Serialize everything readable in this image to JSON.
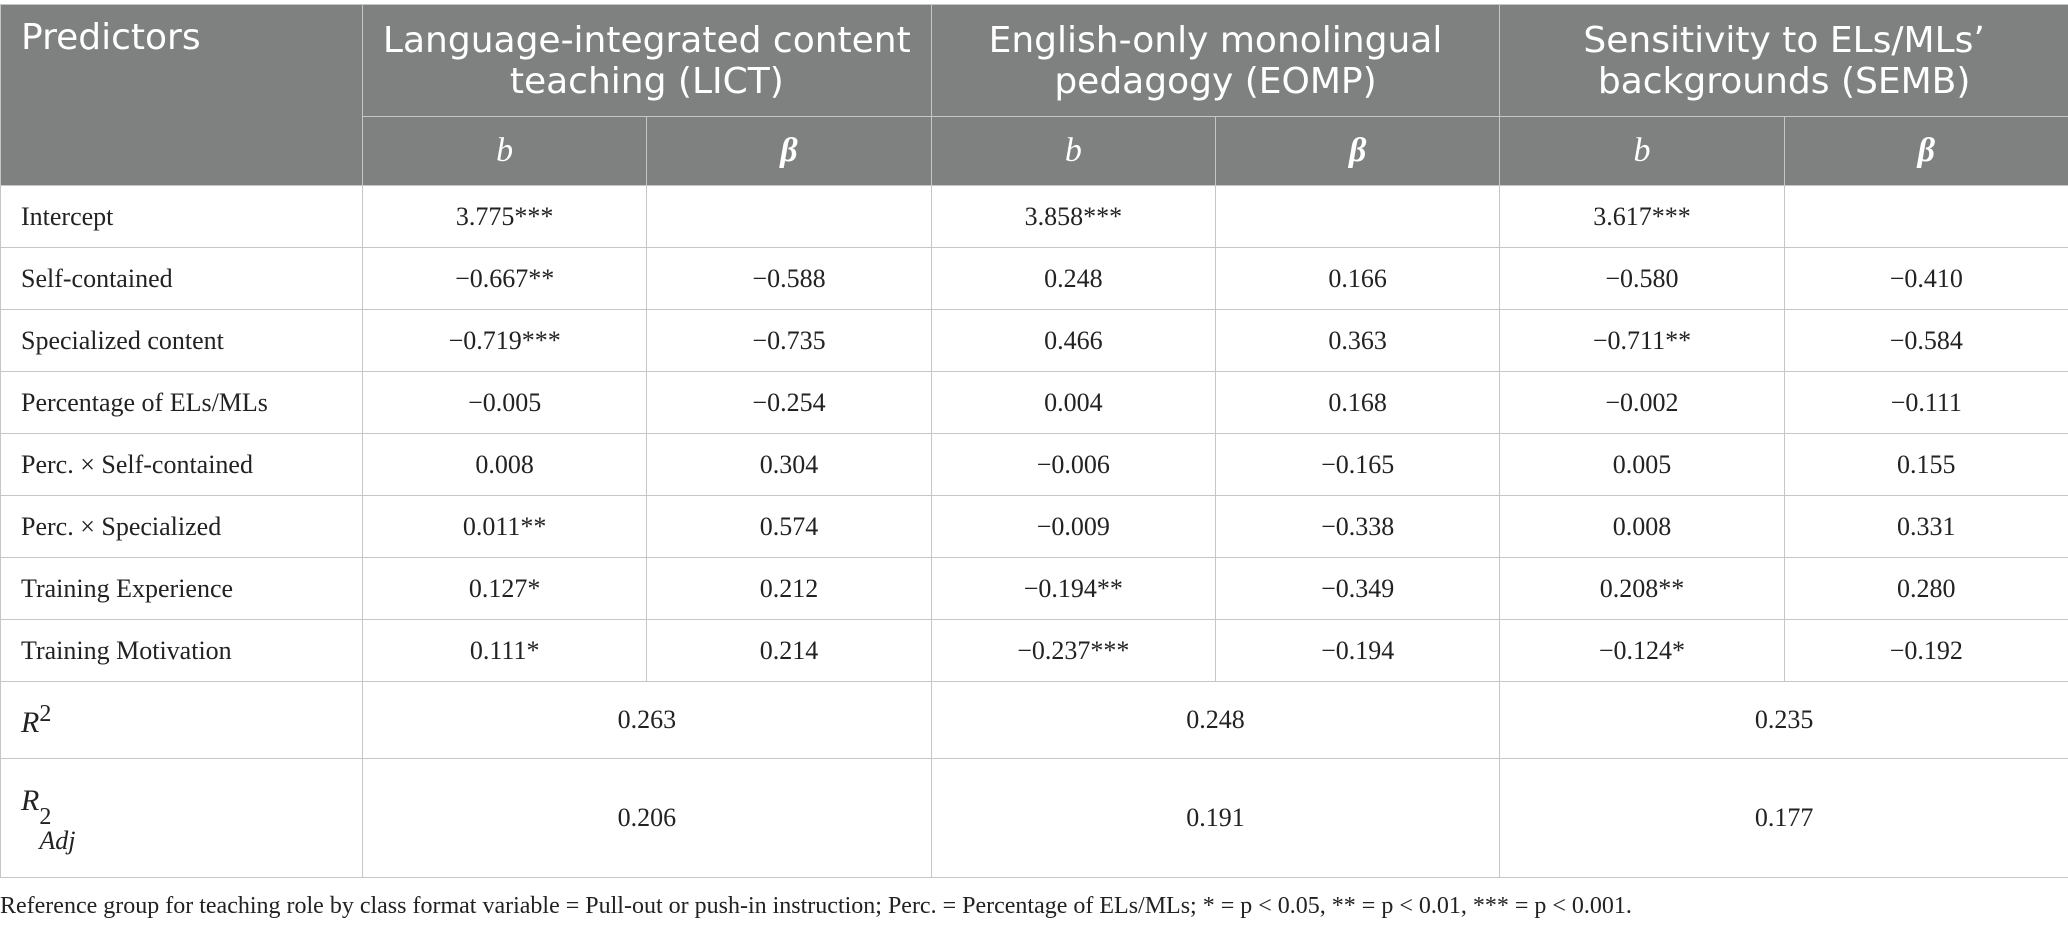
{
  "header": {
    "predictors": "Predictors",
    "groups": [
      "Language-integrated content teaching (LICT)",
      "English-only monolingual pedagogy (EOMP)",
      "Sensitivity to ELs/MLs’ backgrounds (SEMB)"
    ],
    "b_label": "b",
    "beta_label": "β"
  },
  "rows": [
    {
      "label": "Intercept",
      "cells": [
        "3.775***",
        "",
        "3.858***",
        "",
        "3.617***",
        ""
      ]
    },
    {
      "label": "Self-contained",
      "cells": [
        "−0.667**",
        "−0.588",
        "0.248",
        "0.166",
        "−0.580",
        "−0.410"
      ]
    },
    {
      "label": "Specialized content",
      "cells": [
        "−0.719***",
        "−0.735",
        "0.466",
        "0.363",
        "−0.711**",
        "−0.584"
      ]
    },
    {
      "label": "Percentage of ELs/MLs",
      "cells": [
        "−0.005",
        "−0.254",
        "0.004",
        "0.168",
        "−0.002",
        "−0.111"
      ]
    },
    {
      "label": "Perc. × Self-contained",
      "cells": [
        "0.008",
        "0.304",
        "−0.006",
        "−0.165",
        "0.005",
        "0.155"
      ]
    },
    {
      "label": "Perc. × Specialized",
      "cells": [
        "0.011**",
        "0.574",
        "−0.009",
        "−0.338",
        "0.008",
        "0.331"
      ]
    },
    {
      "label": "Training Experience",
      "cells": [
        "0.127*",
        "0.212",
        "−0.194**",
        "−0.349",
        "0.208**",
        "0.280"
      ]
    },
    {
      "label": "Training Motivation",
      "cells": [
        "0.111*",
        "0.214",
        "−0.237***",
        "−0.194",
        "−0.124*",
        "−0.192"
      ]
    }
  ],
  "r2": {
    "symbol": "R",
    "sup": "2",
    "values": [
      "0.263",
      "0.248",
      "0.235"
    ]
  },
  "r2adj": {
    "symbol": "R",
    "sup": "2",
    "sub": "Adj",
    "values": [
      "0.206",
      "0.191",
      "0.177"
    ]
  },
  "footnote": "Reference group for teaching role by class format variable = Pull-out or push-in instruction; Perc. = Percentage of ELs/MLs; * = p < 0.05, ** = p < 0.01, *** = p < 0.001."
}
